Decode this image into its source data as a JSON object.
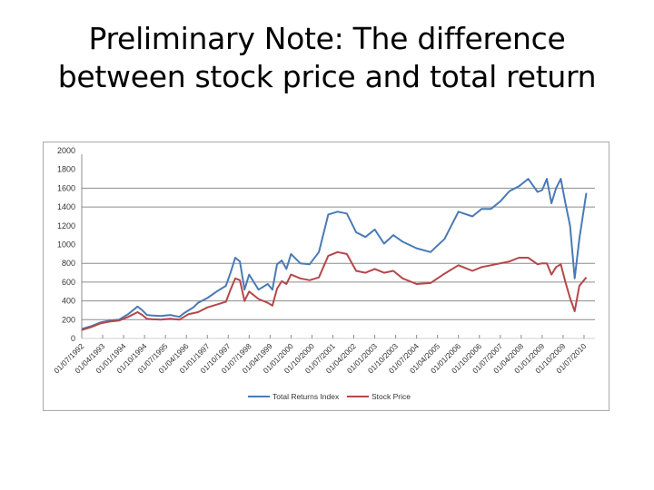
{
  "slide": {
    "title_line1": "Preliminary Note: The difference",
    "title_line2": "between stock price and total return"
  },
  "chart_data": {
    "type": "line",
    "title": "",
    "xlabel": "",
    "ylabel": "",
    "ylim": [
      0,
      2000
    ],
    "yticks": [
      0,
      200,
      400,
      600,
      800,
      1000,
      1200,
      1400,
      1600,
      1800,
      2000
    ],
    "ytick_labels": [
      "0",
      "200",
      "400",
      "600",
      "800",
      "1000",
      "1200",
      "1400",
      "1600",
      "1800",
      "2000"
    ],
    "visible_gridlines": [
      200,
      400,
      600,
      800,
      1400,
      1600
    ],
    "legend_position": "bottom",
    "categories": [
      "01/07/1992",
      "01/04/1993",
      "01/01/1994",
      "01/10/1994",
      "01/07/1995",
      "01/04/1996",
      "01/01/1997",
      "01/10/1997",
      "01/07/1998",
      "01/04/1999",
      "01/01/2000",
      "01/10/2000",
      "01/07/2001",
      "01/04/2002",
      "01/01/2003",
      "01/10/2003",
      "01/07/2004",
      "01/04/2005",
      "01/01/2006",
      "01/10/2006",
      "01/07/2007",
      "01/04/2008",
      "01/01/2009",
      "01/10/2009",
      "01/07/2010"
    ],
    "x_months_from_start": [
      0,
      4,
      8,
      12,
      16,
      20,
      24,
      26,
      28,
      30,
      34,
      38,
      42,
      44,
      46,
      48,
      50,
      54,
      58,
      62,
      64,
      66,
      68,
      70,
      72,
      76,
      80,
      82,
      84,
      86,
      88,
      90,
      94,
      98,
      102,
      106,
      110,
      114,
      118,
      122,
      126,
      130,
      134,
      138,
      144,
      150,
      156,
      162,
      168,
      172,
      176,
      180,
      184,
      188,
      192,
      196,
      198,
      200,
      202,
      204,
      206,
      208,
      210,
      212,
      214,
      217
    ],
    "series": [
      {
        "name": "Total Returns Index",
        "color": "#4a7ab5",
        "values": [
          100,
          130,
          170,
          190,
          200,
          260,
          340,
          300,
          250,
          245,
          240,
          250,
          230,
          270,
          300,
          330,
          380,
          430,
          500,
          560,
          700,
          860,
          820,
          520,
          680,
          520,
          580,
          520,
          790,
          830,
          740,
          900,
          800,
          790,
          920,
          1320,
          1350,
          1330,
          1130,
          1080,
          1160,
          1010,
          1100,
          1030,
          960,
          920,
          1060,
          1350,
          1300,
          1380,
          1380,
          1460,
          1570,
          1620,
          1700,
          1560,
          1580,
          1700,
          1440,
          1600,
          1700,
          1440,
          1200,
          640,
          1060,
          1550
        ]
      },
      {
        "name": "Stock Price",
        "color": "#b5474a",
        "values": [
          90,
          120,
          160,
          180,
          190,
          230,
          280,
          250,
          210,
          205,
          200,
          210,
          200,
          230,
          260,
          270,
          280,
          330,
          360,
          390,
          520,
          640,
          620,
          400,
          500,
          420,
          380,
          350,
          530,
          610,
          580,
          680,
          640,
          620,
          650,
          880,
          920,
          900,
          720,
          700,
          740,
          700,
          720,
          640,
          580,
          590,
          690,
          780,
          720,
          760,
          780,
          800,
          820,
          860,
          860,
          790,
          800,
          800,
          680,
          760,
          790,
          600,
          430,
          290,
          560,
          650
        ]
      }
    ]
  },
  "legend": {
    "items": [
      {
        "label": "Total Returns Index",
        "color": "#4a7ab5"
      },
      {
        "label": "Stock Price",
        "color": "#b5474a"
      }
    ]
  }
}
